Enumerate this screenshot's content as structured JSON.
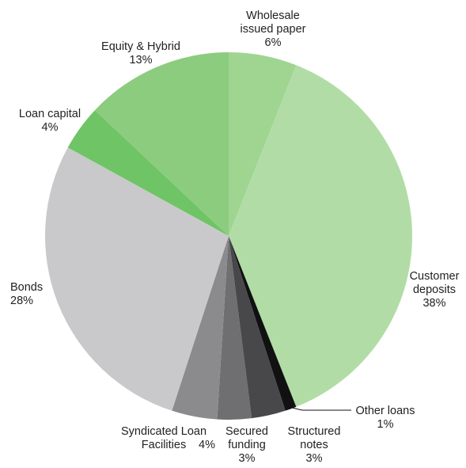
{
  "chart_data": {
    "type": "pie",
    "slices": [
      {
        "label": "Wholesale issued paper",
        "value": 6,
        "value_label": "6%",
        "color": "#9fd591"
      },
      {
        "label": "Customer deposits",
        "value": 38,
        "value_label": "38%",
        "color": "#b2dca6"
      },
      {
        "label": "Other loans",
        "value": 1,
        "value_label": "1%",
        "color": "#111111"
      },
      {
        "label": "Structured notes",
        "value": 3,
        "value_label": "3%",
        "color": "#48484a"
      },
      {
        "label": "Secured funding",
        "value": 3,
        "value_label": "3%",
        "color": "#6f6f71"
      },
      {
        "label": "Syndicated Loan Facilities",
        "value": 4,
        "value_label": "4%",
        "color": "#8b8b8d"
      },
      {
        "label": "Bonds",
        "value": 28,
        "value_label": "28%",
        "color": "#c9c9cb"
      },
      {
        "label": "Loan capital",
        "value": 4,
        "value_label": "4%",
        "color": "#6fc466"
      },
      {
        "label": "Equity & Hybrid",
        "value": 13,
        "value_label": "13%",
        "color": "#8ccc7f"
      }
    ],
    "legend": "none"
  }
}
